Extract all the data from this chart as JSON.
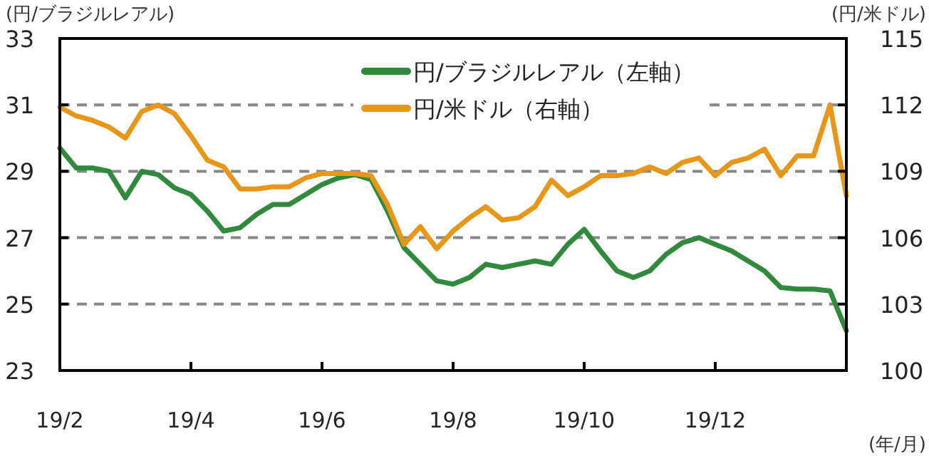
{
  "chart_data": {
    "type": "line",
    "ylabel": "(円/ブラジルレアル)",
    "y2label": "(円/米ドル)",
    "xlabel": "(年/月)",
    "categories": [
      "19/2",
      null,
      null,
      null,
      null,
      null,
      null,
      null,
      "19/4",
      null,
      null,
      null,
      null,
      null,
      null,
      null,
      "19/6",
      null,
      null,
      null,
      null,
      null,
      null,
      null,
      "19/8",
      null,
      null,
      null,
      null,
      null,
      null,
      null,
      "19/10",
      null,
      null,
      null,
      null,
      null,
      null,
      null,
      "19/12",
      null,
      null,
      null,
      null,
      null,
      null,
      null,
      null
    ],
    "series": [
      {
        "name": "円/ブラジルレアル（左軸）",
        "color": "#2f8a3c",
        "values": [
          29.7,
          29.1,
          29.1,
          29.0,
          28.2,
          29.0,
          28.9,
          28.5,
          28.3,
          27.8,
          27.2,
          27.3,
          27.7,
          28.0,
          28.0,
          28.3,
          28.6,
          28.8,
          28.9,
          28.75,
          27.8,
          26.7,
          26.2,
          25.7,
          25.6,
          25.8,
          26.2,
          26.1,
          26.2,
          26.3,
          26.2,
          26.8,
          27.25,
          26.6,
          26.0,
          25.8,
          26.0,
          26.5,
          26.85,
          27.0,
          26.8,
          26.6,
          26.3,
          26.0,
          25.5,
          25.45,
          25.45,
          25.4,
          24.2
        ]
      },
      {
        "name": "円/米ドル（右軸）",
        "color": "#e8961a",
        "axis": "y2",
        "values": [
          111.9,
          111.5,
          111.3,
          111.0,
          110.5,
          111.7,
          112.0,
          111.6,
          110.6,
          109.5,
          109.2,
          108.2,
          108.2,
          108.3,
          108.3,
          108.7,
          108.9,
          108.9,
          108.9,
          108.8,
          107.5,
          105.7,
          106.5,
          105.5,
          106.3,
          106.9,
          107.4,
          106.8,
          106.9,
          107.4,
          108.6,
          107.9,
          108.3,
          108.8,
          108.8,
          108.9,
          109.2,
          108.9,
          109.4,
          109.6,
          108.8,
          109.4,
          109.6,
          110.0,
          108.8,
          109.7,
          109.7,
          112.0,
          107.9
        ]
      }
    ],
    "ylim": [
      23,
      33
    ],
    "yticks": [
      23,
      25,
      27,
      29,
      31,
      33
    ],
    "y2lim": [
      100,
      115
    ],
    "y2ticks": [
      100,
      103,
      106,
      109,
      112,
      115
    ],
    "grid": "y",
    "legend": "top",
    "line_style": "solid"
  }
}
